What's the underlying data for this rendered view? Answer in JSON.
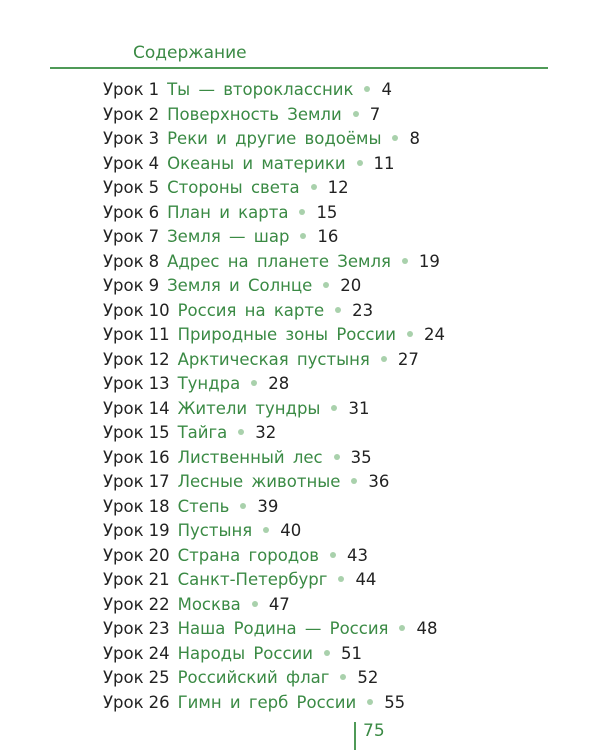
{
  "header": {
    "title": "Содержание"
  },
  "lesson_word": "Урок",
  "lessons": [
    {
      "num": "1",
      "title": "Ты — второклассник",
      "page": "4"
    },
    {
      "num": "2",
      "title": "Поверхность Земли",
      "page": "7"
    },
    {
      "num": "3",
      "title": "Реки и другие водоёмы",
      "page": "8"
    },
    {
      "num": "4",
      "title": "Океаны и материки",
      "page": "11"
    },
    {
      "num": "5",
      "title": "Стороны света",
      "page": "12"
    },
    {
      "num": "6",
      "title": "План и карта",
      "page": "15"
    },
    {
      "num": "7",
      "title": "Земля — шар",
      "page": "16"
    },
    {
      "num": "8",
      "title": "Адрес на планете Земля",
      "page": "19"
    },
    {
      "num": "9",
      "title": "Земля и Солнце",
      "page": "20"
    },
    {
      "num": "10",
      "title": "Россия на карте",
      "page": "23"
    },
    {
      "num": "11",
      "title": "Природные зоны России",
      "page": "24"
    },
    {
      "num": "12",
      "title": "Арктическая пустыня",
      "page": "27"
    },
    {
      "num": "13",
      "title": "Тундра",
      "page": "28"
    },
    {
      "num": "14",
      "title": "Жители тундры",
      "page": "31"
    },
    {
      "num": "15",
      "title": "Тайга",
      "page": "32"
    },
    {
      "num": "16",
      "title": "Лиственный лес",
      "page": "35"
    },
    {
      "num": "17",
      "title": "Лесные животные",
      "page": "36"
    },
    {
      "num": "18",
      "title": "Степь",
      "page": "39"
    },
    {
      "num": "19",
      "title": "Пустыня",
      "page": "40"
    },
    {
      "num": "20",
      "title": "Страна городов",
      "page": "43"
    },
    {
      "num": "21",
      "title": "Санкт-Петербург",
      "page": "44"
    },
    {
      "num": "22",
      "title": "Москва",
      "page": "47"
    },
    {
      "num": "23",
      "title": "Наша Родина — Россия",
      "page": "48"
    },
    {
      "num": "24",
      "title": "Народы России",
      "page": "51"
    },
    {
      "num": "25",
      "title": "Российский флаг",
      "page": "52"
    },
    {
      "num": "26",
      "title": "Гимн и герб России",
      "page": "55"
    }
  ],
  "footer": {
    "page_number": "75"
  },
  "colors": {
    "accent": "#3a8a44",
    "dot": "#a9d1ac",
    "text": "#222222"
  }
}
